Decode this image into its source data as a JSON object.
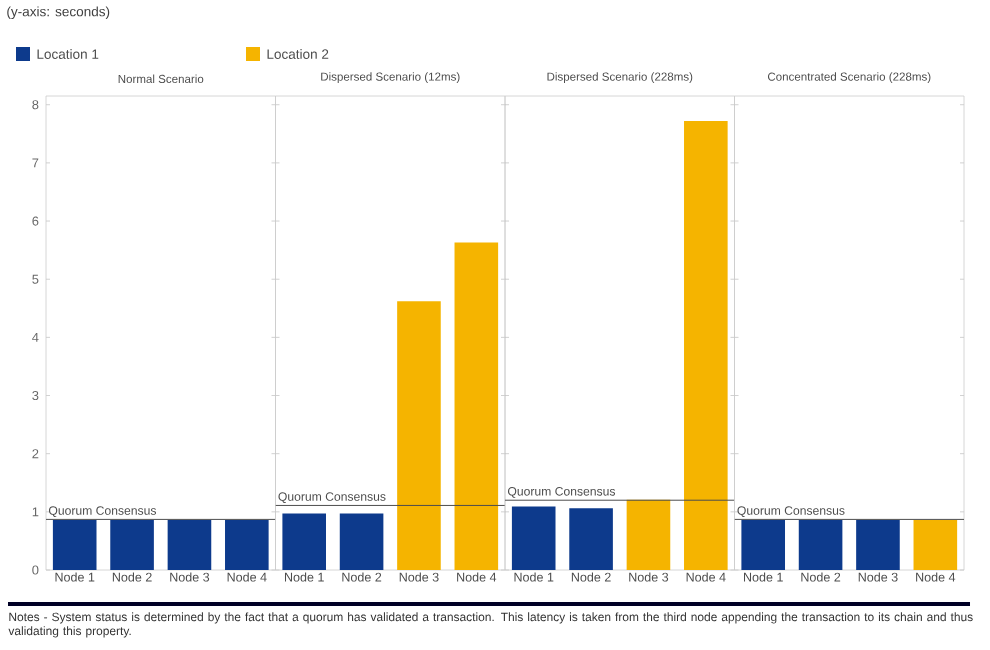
{
  "chart_data": [
    {
      "type": "bar",
      "title": "Normal Scenario",
      "ylabel": "(y-axis: seconds)",
      "categories": [
        "Node 1",
        "Node 2",
        "Node 3",
        "Node 4"
      ],
      "ylim": [
        0,
        8.15
      ],
      "yticks": [
        0,
        1,
        2,
        3,
        4,
        5,
        6,
        7,
        8
      ],
      "legend": "top",
      "annotations": [
        "Notes - System status is determined by the fact that a quorum has validated a transaction. This latency is taken from the third node appending the transaction to its chain and thus validating this property."
      ],
      "series": [
        {
          "name": "Location 1",
          "color": "#0d3a8c",
          "values": [
            0.86,
            0.86,
            0.86,
            0.86
          ]
        },
        {
          "name": "Location 2",
          "color": "#f5b400",
          "values": [
            null,
            null,
            null,
            null
          ]
        }
      ],
      "ref_lines": [
        {
          "axis": "y",
          "value": 0.87,
          "label": "Quorum Consensus"
        }
      ]
    },
    {
      "type": "bar",
      "title": "Dispersed Scenario (12ms)",
      "categories": [
        "Node 1",
        "Node 2",
        "Node 3",
        "Node 4"
      ],
      "ylim": [
        0,
        8.15
      ],
      "yticks": [
        0,
        1,
        2,
        3,
        4,
        5,
        6,
        7,
        8
      ],
      "tick_labels": "x",
      "series": [
        {
          "color": "#0d3a8c",
          "values": [
            0.97,
            0.97,
            null,
            null
          ]
        },
        {
          "color": "#f5b400",
          "values": [
            null,
            null,
            4.62,
            5.63
          ]
        }
      ],
      "ref_lines": [
        {
          "axis": "y",
          "value": 1.11,
          "label": "Quorum Consensus"
        }
      ]
    },
    {
      "type": "bar",
      "title": "Dispersed Scenario (228ms)",
      "categories": [
        "Node 1",
        "Node 2",
        "Node 3",
        "Node 4"
      ],
      "ylim": [
        0,
        8.15
      ],
      "yticks": [
        0,
        1,
        2,
        3,
        4,
        5,
        6,
        7,
        8
      ],
      "tick_labels": "x",
      "series": [
        {
          "color": "#0d3a8c",
          "values": [
            1.09,
            1.06,
            null,
            null
          ]
        },
        {
          "color": "#f5b400",
          "values": [
            null,
            null,
            1.21,
            7.72
          ]
        }
      ],
      "ref_lines": [
        {
          "axis": "y",
          "value": 1.2,
          "label": "Quorum Consensus"
        }
      ]
    },
    {
      "type": "bar",
      "title": "Concentrated Scenario (228ms)",
      "categories": [
        "Node 1",
        "Node 2",
        "Node 3",
        "Node 4"
      ],
      "ylim": [
        0,
        8.15
      ],
      "yticks": [
        0,
        1,
        2,
        3,
        4,
        5,
        6,
        7,
        8
      ],
      "tick_labels": "x",
      "series": [
        {
          "color": "#0d3a8c",
          "values": [
            0.86,
            0.86,
            0.86,
            null
          ]
        },
        {
          "color": "#f5b400",
          "values": [
            null,
            null,
            null,
            0.86
          ]
        }
      ],
      "ref_lines": [
        {
          "axis": "y",
          "value": 0.87,
          "label": "Quorum Consensus"
        }
      ]
    }
  ]
}
